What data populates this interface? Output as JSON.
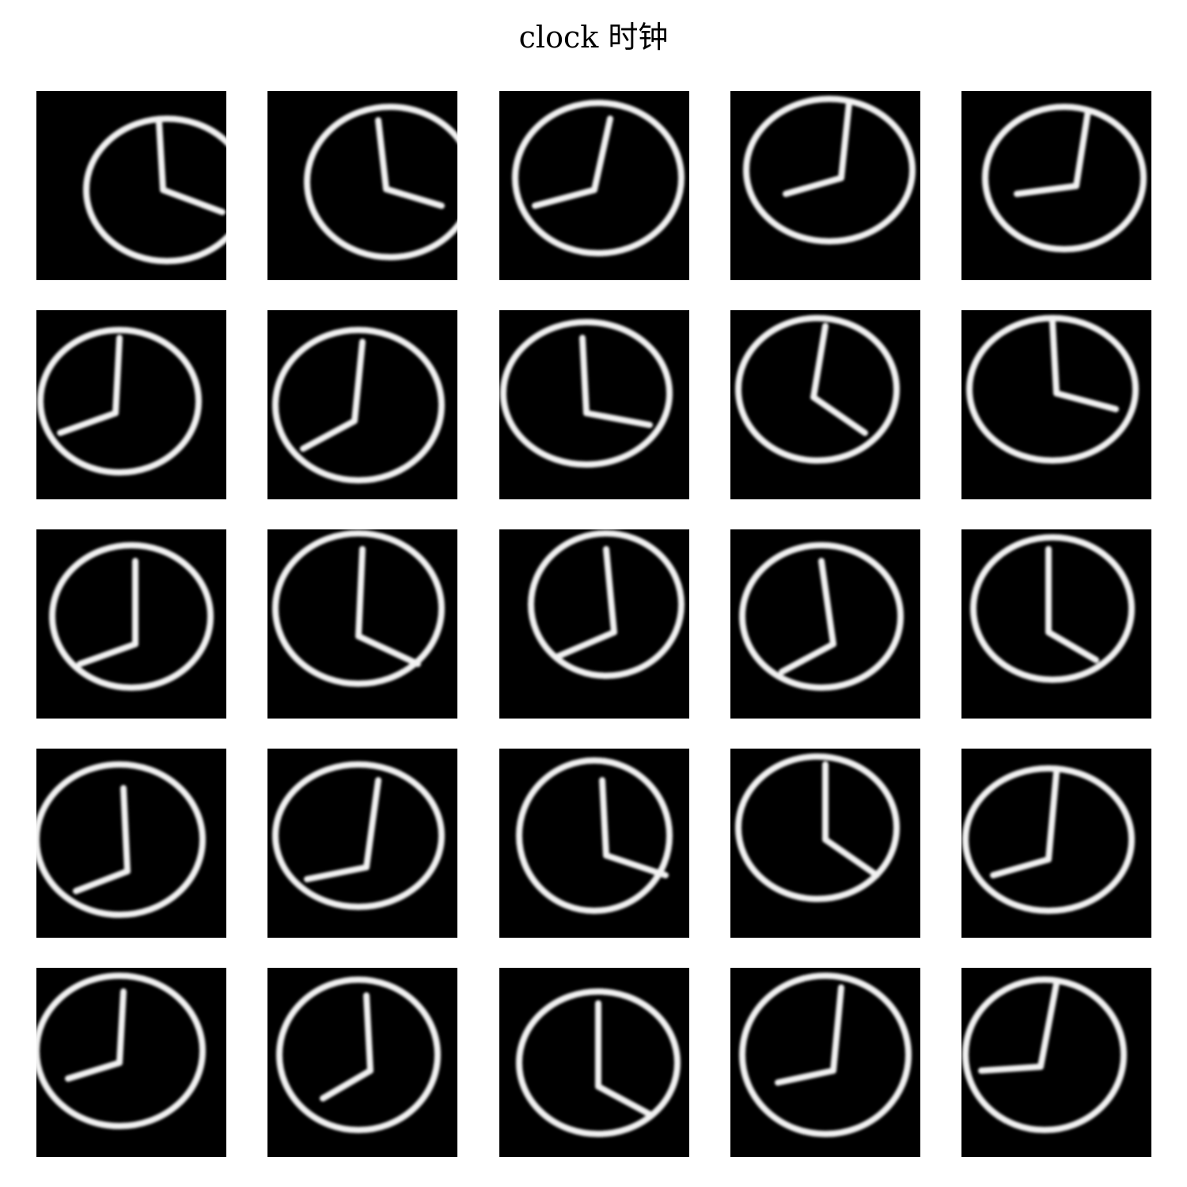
{
  "title": "clock 时钟",
  "colors": {
    "background": "#ffffff",
    "tile": "#000000",
    "stroke": "#f2f2f2"
  },
  "grid": {
    "rows": 5,
    "cols": 5
  },
  "samples": [
    {
      "shape": "ellipse",
      "hand_hour": "right",
      "hand_min": "up"
    },
    {
      "shape": "ellipse",
      "hand_hour": "right",
      "hand_min": "up"
    },
    {
      "shape": "ellipse",
      "hand_hour": "left",
      "hand_min": "up"
    },
    {
      "shape": "ellipse",
      "hand_hour": "left",
      "hand_min": "up"
    },
    {
      "shape": "ellipse",
      "hand_hour": "left",
      "hand_min": "up"
    },
    {
      "shape": "ellipse",
      "hand_hour": "left",
      "hand_min": "up"
    },
    {
      "shape": "ellipse",
      "hand_hour": "left",
      "hand_min": "up"
    },
    {
      "shape": "ellipse",
      "hand_hour": "right",
      "hand_min": "up"
    },
    {
      "shape": "ellipse",
      "hand_hour": "right",
      "hand_min": "up"
    },
    {
      "shape": "ellipse",
      "hand_hour": "right",
      "hand_min": "up"
    },
    {
      "shape": "ellipse",
      "hand_hour": "left",
      "hand_min": "up"
    },
    {
      "shape": "ellipse",
      "hand_hour": "right",
      "hand_min": "up"
    },
    {
      "shape": "ellipse",
      "hand_hour": "left",
      "hand_min": "up"
    },
    {
      "shape": "ellipse",
      "hand_hour": "left",
      "hand_min": "up"
    },
    {
      "shape": "ellipse",
      "hand_hour": "right",
      "hand_min": "up"
    },
    {
      "shape": "ellipse",
      "hand_hour": "left",
      "hand_min": "up"
    },
    {
      "shape": "ellipse",
      "hand_hour": "left",
      "hand_min": "up"
    },
    {
      "shape": "ellipse",
      "hand_hour": "right",
      "hand_min": "up"
    },
    {
      "shape": "ellipse",
      "hand_hour": "right",
      "hand_min": "up"
    },
    {
      "shape": "ellipse",
      "hand_hour": "left",
      "hand_min": "up"
    },
    {
      "shape": "ellipse",
      "hand_hour": "left",
      "hand_min": "up"
    },
    {
      "shape": "ellipse",
      "hand_hour": "left",
      "hand_min": "up"
    },
    {
      "shape": "ellipse",
      "hand_hour": "right",
      "hand_min": "up"
    },
    {
      "shape": "ellipse",
      "hand_hour": "left",
      "hand_min": "up"
    },
    {
      "shape": "ellipse",
      "hand_hour": "left",
      "hand_min": "up"
    }
  ]
}
